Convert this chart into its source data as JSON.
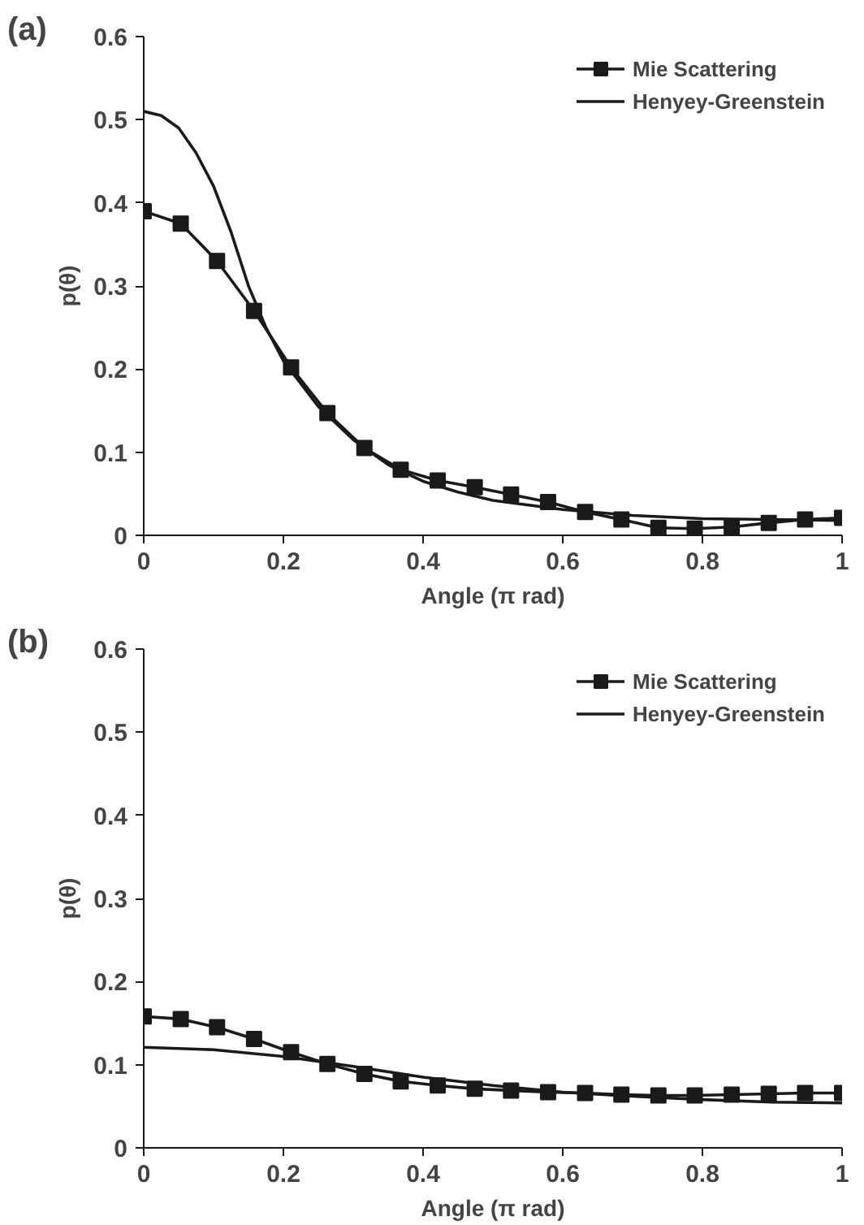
{
  "chart_data": [
    {
      "type": "line",
      "annotations": [
        "(a)"
      ],
      "xlabel": "Angle (π rad)",
      "ylabel": "p(θ)",
      "xlim": [
        0,
        1
      ],
      "ylim": [
        0,
        0.6
      ],
      "xticks": [
        0,
        0.2,
        0.4,
        0.6,
        0.8,
        1
      ],
      "yticks": [
        0,
        0.1,
        0.2,
        0.3,
        0.4,
        0.5,
        0.6
      ],
      "grid": false,
      "legend": "top right",
      "line_style": "solid",
      "series": [
        {
          "name": "Mie Scattering",
          "color": "#1a1a1a",
          "marker": "square",
          "x": [
            0,
            0.053,
            0.105,
            0.158,
            0.211,
            0.263,
            0.316,
            0.368,
            0.421,
            0.474,
            0.526,
            0.579,
            0.632,
            0.684,
            0.737,
            0.789,
            0.842,
            0.895,
            0.947,
            1
          ],
          "values": [
            0.39,
            0.375,
            0.33,
            0.27,
            0.202,
            0.147,
            0.105,
            0.079,
            0.066,
            0.058,
            0.049,
            0.04,
            0.028,
            0.019,
            0.009,
            0.008,
            0.01,
            0.015,
            0.019,
            0.021
          ]
        },
        {
          "name": "Henyey-Greenstein",
          "color": "#1a1a1a",
          "marker": "none",
          "x": [
            0,
            0.025,
            0.05,
            0.075,
            0.1,
            0.125,
            0.15,
            0.175,
            0.2,
            0.25,
            0.3,
            0.35,
            0.4,
            0.45,
            0.5,
            0.6,
            0.7,
            0.8,
            0.9,
            1
          ],
          "values": [
            0.51,
            0.505,
            0.49,
            0.46,
            0.42,
            0.365,
            0.3,
            0.25,
            0.21,
            0.155,
            0.115,
            0.085,
            0.065,
            0.052,
            0.042,
            0.031,
            0.024,
            0.02,
            0.019,
            0.018
          ]
        }
      ]
    },
    {
      "type": "line",
      "annotations": [
        "(b)"
      ],
      "xlabel": "Angle (π rad)",
      "ylabel": "p(θ)",
      "xlim": [
        0,
        1
      ],
      "ylim": [
        0,
        0.6
      ],
      "xticks": [
        0,
        0.2,
        0.4,
        0.6,
        0.8,
        1
      ],
      "yticks": [
        0,
        0.1,
        0.2,
        0.3,
        0.4,
        0.5,
        0.6
      ],
      "grid": false,
      "legend": "top right",
      "line_style": "solid",
      "series": [
        {
          "name": "Mie Scattering",
          "color": "#1a1a1a",
          "marker": "square",
          "x": [
            0,
            0.053,
            0.105,
            0.158,
            0.211,
            0.263,
            0.316,
            0.368,
            0.421,
            0.474,
            0.526,
            0.579,
            0.632,
            0.684,
            0.737,
            0.789,
            0.842,
            0.895,
            0.947,
            1
          ],
          "values": [
            0.158,
            0.155,
            0.145,
            0.131,
            0.115,
            0.101,
            0.089,
            0.08,
            0.075,
            0.071,
            0.069,
            0.067,
            0.066,
            0.064,
            0.063,
            0.063,
            0.064,
            0.065,
            0.066,
            0.066
          ]
        },
        {
          "name": "Henyey-Greenstein",
          "color": "#1a1a1a",
          "marker": "none",
          "x": [
            0,
            0.1,
            0.2,
            0.3,
            0.4,
            0.5,
            0.6,
            0.7,
            0.8,
            0.9,
            1
          ],
          "values": [
            0.121,
            0.118,
            0.11,
            0.098,
            0.085,
            0.075,
            0.067,
            0.062,
            0.058,
            0.055,
            0.054
          ]
        }
      ]
    }
  ]
}
